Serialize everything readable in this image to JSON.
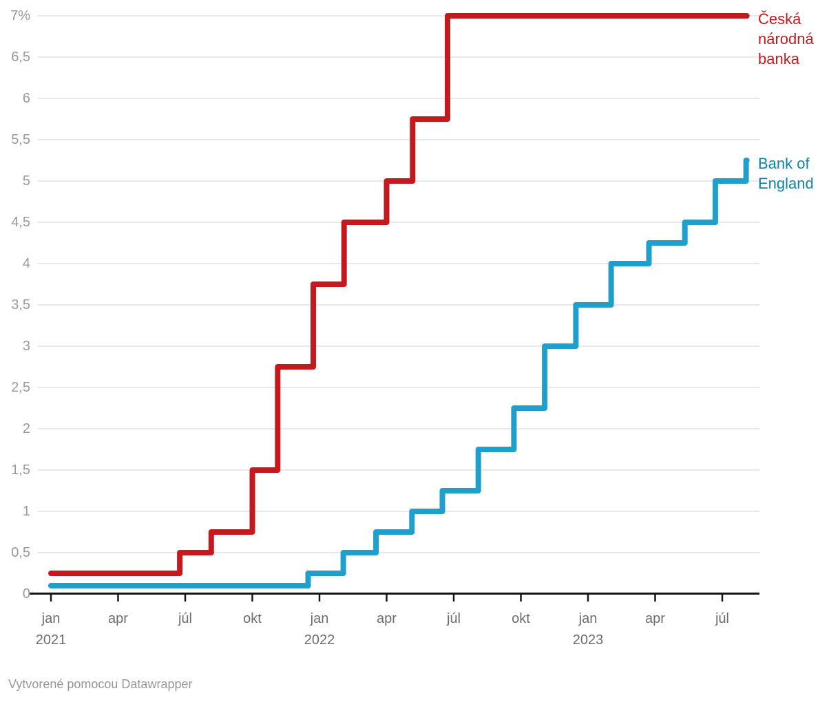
{
  "chart_data": {
    "type": "line",
    "step": true,
    "title": "",
    "grid": "horizontal",
    "legend_position": "direct-labels-right",
    "x_domain": [
      "2021-01-01",
      "2023-08-21"
    ],
    "y_axis": {
      "min": 0,
      "max": 7,
      "tick_values": [
        7,
        6.5,
        6,
        5.5,
        5,
        4.5,
        4,
        3.5,
        3,
        2.5,
        2,
        1.5,
        1,
        0.5,
        0
      ],
      "tick_labels": [
        "7%",
        "6,5",
        "6",
        "5,5",
        "5",
        "4,5",
        "4",
        "3,5",
        "3",
        "2,5",
        "2",
        "1,5",
        "1",
        "0,5",
        "0"
      ]
    },
    "x_ticks": [
      {
        "date": "2021-01-01",
        "label": "jan",
        "year": "2021"
      },
      {
        "date": "2021-04-01",
        "label": "apr"
      },
      {
        "date": "2021-07-01",
        "label": "júl"
      },
      {
        "date": "2021-10-01",
        "label": "okt"
      },
      {
        "date": "2022-01-01",
        "label": "jan",
        "year": "2022"
      },
      {
        "date": "2022-04-01",
        "label": "apr"
      },
      {
        "date": "2022-07-01",
        "label": "júl"
      },
      {
        "date": "2022-10-01",
        "label": "okt"
      },
      {
        "date": "2023-01-01",
        "label": "jan",
        "year": "2023"
      },
      {
        "date": "2023-04-01",
        "label": "apr"
      },
      {
        "date": "2023-07-01",
        "label": "júl"
      }
    ],
    "series": [
      {
        "name": "Česká národná banka",
        "slug": "ceska-narodna-banka",
        "color": "#c6191e",
        "label_color": "#c6191e",
        "label_lines": [
          "Česká",
          "národná",
          "banka"
        ],
        "unit": "%",
        "points": [
          [
            "2021-01-01",
            0.25
          ],
          [
            "2021-06-24",
            0.5
          ],
          [
            "2021-08-06",
            0.75
          ],
          [
            "2021-10-01",
            1.5
          ],
          [
            "2021-11-05",
            2.75
          ],
          [
            "2021-12-23",
            3.75
          ],
          [
            "2022-02-04",
            4.5
          ],
          [
            "2022-04-01",
            5.0
          ],
          [
            "2022-05-06",
            5.75
          ],
          [
            "2022-06-23",
            7.0
          ]
        ],
        "end_date": "2023-08-04",
        "end_value": 7.0
      },
      {
        "name": "Bank of England",
        "slug": "bank-of-england",
        "color": "#1e9fcc",
        "label_color": "#0e82ad",
        "label_lines": [
          "Bank of",
          "England"
        ],
        "unit": "%",
        "points": [
          [
            "2021-01-01",
            0.1
          ],
          [
            "2021-12-16",
            0.25
          ],
          [
            "2022-02-03",
            0.5
          ],
          [
            "2022-03-17",
            0.75
          ],
          [
            "2022-05-05",
            1.0
          ],
          [
            "2022-06-16",
            1.25
          ],
          [
            "2022-08-04",
            1.75
          ],
          [
            "2022-09-22",
            2.25
          ],
          [
            "2022-11-03",
            3.0
          ],
          [
            "2022-12-15",
            3.5
          ],
          [
            "2023-02-02",
            4.0
          ],
          [
            "2023-03-23",
            4.25
          ],
          [
            "2023-05-11",
            4.5
          ],
          [
            "2023-06-22",
            5.0
          ],
          [
            "2023-08-03",
            5.25
          ]
        ],
        "end_date": "2023-08-04",
        "end_value": 5.25
      }
    ]
  },
  "footer": {
    "credit": "Vytvorené pomocou Datawrapper"
  }
}
